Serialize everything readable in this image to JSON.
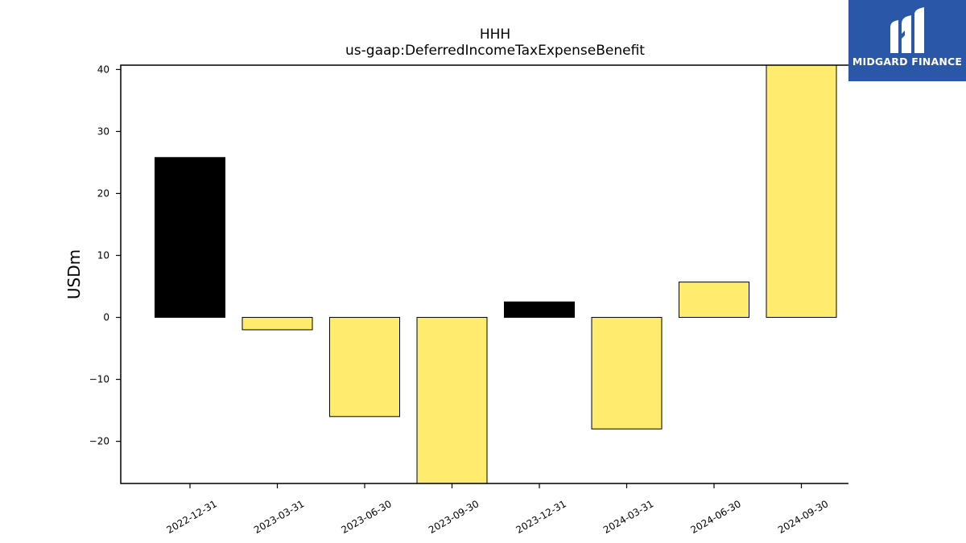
{
  "brand": {
    "name": "MIDGARD FINANCE",
    "logo_icon": "midgard-logo-icon",
    "background": "#2a57a8"
  },
  "chart_data": {
    "type": "bar",
    "title": "HHH",
    "subtitle": "us-gaap:DeferredIncomeTaxExpenseBenefit",
    "xlabel": "",
    "ylabel": "USDm",
    "categories": [
      "2022-12-31",
      "2023-03-31",
      "2023-06-30",
      "2023-09-30",
      "2023-12-31",
      "2024-03-31",
      "2024-06-30",
      "2024-09-30"
    ],
    "values": [
      25.8,
      -2.0,
      -16.0,
      -27.0,
      2.5,
      -18.0,
      5.7,
      41.0
    ],
    "bar_colors": [
      "#000000",
      "#ffec6e",
      "#ffec6e",
      "#ffec6e",
      "#000000",
      "#ffec6e",
      "#ffec6e",
      "#ffec6e"
    ],
    "ylim": [
      -26.8,
      40.7
    ],
    "yticks": [
      -20,
      -10,
      0,
      10,
      20,
      30,
      40
    ],
    "ytick_labels": [
      "−20",
      "−10",
      "0",
      "10",
      "20",
      "30",
      "40"
    ],
    "grid": false,
    "legend": "none"
  }
}
